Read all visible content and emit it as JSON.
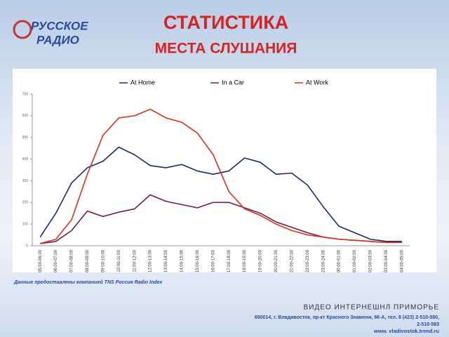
{
  "header": {
    "logo": [
      "РУССКОЕ",
      "РАДИО"
    ],
    "title": "СТАТИСТИКА",
    "subtitle": "МЕСТА СЛУШАНИЯ"
  },
  "chart_data": {
    "type": "line",
    "categories": [
      "05:00-06:00",
      "06:00-07:00",
      "07:00-08:00",
      "08:00-09:00",
      "09:00-10:00",
      "10:00-11:00",
      "11:00-12:00",
      "12:00-13:00",
      "13:00-14:00",
      "14:00-15:00",
      "15:00-16:00",
      "16:00-17:00",
      "17:00-18:00",
      "18:00-19:00",
      "19:00-20:00",
      "20:00-21:00",
      "21:00-22:00",
      "22:00-23:00",
      "23:00-24:00",
      "00:00-01:00",
      "01:00-02:00",
      "02:00-03:00",
      "03:00-04:00",
      "04:00-05:00"
    ],
    "series": [
      {
        "name": "At Home",
        "color": "#1f2a6b",
        "values": [
          40,
          150,
          290,
          360,
          390,
          455,
          420,
          370,
          360,
          375,
          345,
          330,
          345,
          405,
          385,
          330,
          335,
          280,
          180,
          90,
          60,
          30,
          20,
          20
        ]
      },
      {
        "name": "In a Car",
        "color": "#6e1f4f",
        "values": [
          10,
          20,
          70,
          160,
          135,
          155,
          170,
          235,
          205,
          190,
          175,
          200,
          200,
          175,
          150,
          110,
          85,
          60,
          40,
          30,
          25,
          20,
          15,
          15
        ]
      },
      {
        "name": "At Work",
        "color": "#e0301e",
        "values": [
          10,
          30,
          120,
          330,
          510,
          590,
          600,
          630,
          590,
          570,
          520,
          420,
          250,
          170,
          140,
          100,
          70,
          50,
          40,
          30,
          25,
          20,
          15,
          15
        ]
      }
    ],
    "ylim": [
      0,
      700
    ],
    "yticks": [
      0,
      100,
      200,
      300,
      400,
      500,
      600,
      700
    ],
    "grid": false,
    "legend": "top"
  },
  "source": "Данные предоставлены компанией TNS Россия Radio Index",
  "footer": {
    "company": "ВИДЕО ИНТЕРНЕШНЛ ПРИМОРЬЕ",
    "address": [
      "690014, г. Владивосток, пр-кт Красного Знамени, 86-А, тел. 8 (423) 2-510-580,",
      "2-510-583"
    ],
    "website": "www. vladivostok.trend.ru"
  }
}
